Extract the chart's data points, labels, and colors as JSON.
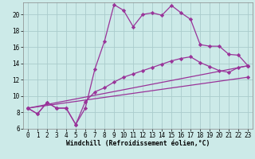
{
  "title": "",
  "xlabel": "Windchill (Refroidissement éolien,°C)",
  "bg_color": "#cceae8",
  "grid_color": "#aacccc",
  "line_color": "#993399",
  "x_ticks": [
    0,
    1,
    2,
    3,
    4,
    5,
    6,
    7,
    8,
    9,
    10,
    11,
    12,
    13,
    14,
    15,
    16,
    17,
    18,
    19,
    20,
    21,
    22,
    23
  ],
  "ylim": [
    6,
    21.5
  ],
  "xlim": [
    -0.5,
    23.5
  ],
  "y_ticks": [
    6,
    8,
    10,
    12,
    14,
    16,
    18,
    20
  ],
  "line1_x": [
    0,
    1,
    2,
    3,
    4,
    5,
    6,
    7,
    8,
    9,
    10,
    11,
    12,
    13,
    14,
    15,
    16,
    17,
    18,
    19,
    20,
    21,
    22,
    23
  ],
  "line1_y": [
    8.5,
    7.8,
    9.2,
    8.5,
    8.5,
    6.5,
    8.5,
    13.3,
    16.7,
    21.2,
    20.5,
    18.5,
    20.0,
    20.2,
    19.9,
    21.1,
    20.2,
    19.4,
    16.3,
    16.1,
    16.1,
    15.1,
    15.0,
    13.7
  ],
  "line2_x": [
    0,
    1,
    2,
    3,
    4,
    5,
    6,
    7,
    8,
    9,
    10,
    11,
    12,
    13,
    14,
    15,
    16,
    17,
    18,
    19,
    20,
    21,
    22,
    23
  ],
  "line2_y": [
    8.5,
    7.8,
    9.2,
    8.5,
    8.5,
    6.5,
    9.3,
    10.5,
    11.0,
    11.7,
    12.3,
    12.7,
    13.1,
    13.5,
    13.9,
    14.3,
    14.6,
    14.8,
    14.1,
    13.6,
    13.1,
    12.9,
    13.5,
    13.7
  ],
  "line3_x": [
    0,
    23
  ],
  "line3_y": [
    8.5,
    13.7
  ],
  "line4_x": [
    0,
    23
  ],
  "line4_y": [
    8.5,
    12.3
  ],
  "marker": "D",
  "marker_size": 2.2,
  "line_width": 0.9,
  "tick_fontsize": 5.5,
  "xlabel_fontsize": 5.8
}
